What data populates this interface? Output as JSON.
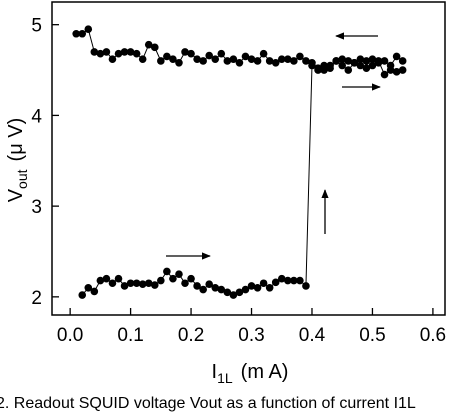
{
  "chart_data": {
    "type": "line",
    "xlabel": {
      "main": "I",
      "sub": "1L",
      "unit": "(m A)"
    },
    "ylabel": {
      "main": "V",
      "sub": "out",
      "unit": "(μ V)"
    },
    "caption": "2.  Readout SQUID voltage Vout as a function of current I1L",
    "xlim": [
      -0.03,
      0.62
    ],
    "ylim": [
      1.8,
      5.25
    ],
    "xticks": [
      {
        "value": 0,
        "label": "0.0"
      },
      0.1,
      0.2,
      0.3,
      0.4,
      0.5,
      0.6
    ],
    "yticks": [
      2,
      3,
      4,
      5
    ],
    "series": [
      {
        "color": "#000000",
        "x": [
          0.02,
          0.03,
          0.04,
          0.05,
          0.06,
          0.07,
          0.08,
          0.09,
          0.1,
          0.11,
          0.12,
          0.13,
          0.14,
          0.15,
          0.16,
          0.17,
          0.18,
          0.19,
          0.2,
          0.21,
          0.22,
          0.23,
          0.24,
          0.25,
          0.26,
          0.27,
          0.28,
          0.29,
          0.3,
          0.31,
          0.32,
          0.33,
          0.34,
          0.35,
          0.36,
          0.37,
          0.38,
          0.39,
          0.4,
          0.41,
          0.42,
          0.43,
          0.44,
          0.45,
          0.46,
          0.47,
          0.48,
          0.49,
          0.5,
          0.51,
          0.52,
          0.53,
          0.54,
          0.55
        ],
        "values": [
          2.02,
          2.1,
          2.06,
          2.18,
          2.2,
          2.15,
          2.2,
          2.12,
          2.15,
          2.15,
          2.14,
          2.15,
          2.13,
          2.18,
          2.28,
          2.2,
          2.25,
          2.15,
          2.2,
          2.12,
          2.08,
          2.14,
          2.1,
          2.08,
          2.05,
          2.02,
          2.05,
          2.08,
          2.12,
          2.1,
          2.15,
          2.1,
          2.16,
          2.2,
          2.18,
          2.18,
          2.18,
          2.12,
          4.55,
          4.5,
          4.55,
          4.52,
          4.6,
          4.55,
          4.5,
          4.58,
          4.55,
          4.52,
          4.55,
          4.6,
          4.45,
          4.5,
          4.48,
          4.5
        ]
      },
      {
        "color": "#000000",
        "x": [
          0.55,
          0.54,
          0.53,
          0.52,
          0.51,
          0.5,
          0.49,
          0.48,
          0.47,
          0.46,
          0.45,
          0.44,
          0.43,
          0.42,
          0.41,
          0.4,
          0.39,
          0.38,
          0.37,
          0.36,
          0.35,
          0.34,
          0.33,
          0.32,
          0.31,
          0.3,
          0.29,
          0.28,
          0.27,
          0.26,
          0.25,
          0.24,
          0.23,
          0.22,
          0.21,
          0.2,
          0.19,
          0.18,
          0.17,
          0.16,
          0.15,
          0.14,
          0.13,
          0.12,
          0.11,
          0.1,
          0.09,
          0.08,
          0.07,
          0.06,
          0.05,
          0.04,
          0.03,
          0.02,
          0.01
        ],
        "values": [
          4.6,
          4.65,
          4.55,
          4.6,
          4.58,
          4.62,
          4.6,
          4.62,
          4.58,
          4.6,
          4.62,
          4.6,
          4.55,
          4.5,
          4.52,
          4.58,
          4.6,
          4.65,
          4.6,
          4.62,
          4.62,
          4.58,
          4.6,
          4.68,
          4.6,
          4.62,
          4.65,
          4.58,
          4.62,
          4.6,
          4.68,
          4.62,
          4.66,
          4.6,
          4.62,
          4.68,
          4.7,
          4.58,
          4.62,
          4.65,
          4.6,
          4.75,
          4.78,
          4.62,
          4.68,
          4.7,
          4.7,
          4.68,
          4.62,
          4.7,
          4.68,
          4.7,
          4.95,
          4.9,
          4.9
        ]
      }
    ]
  }
}
